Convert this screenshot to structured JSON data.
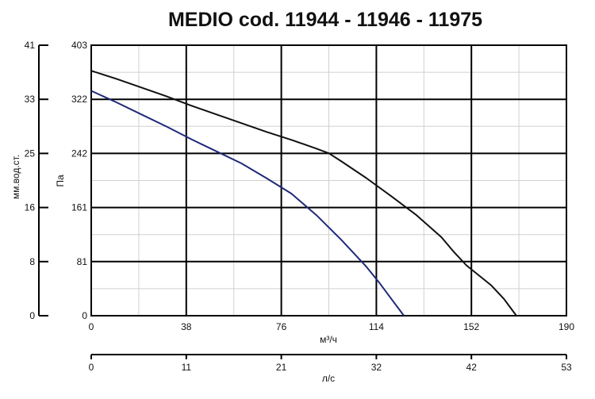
{
  "chart_data": {
    "type": "line",
    "title": "MEDIO cod. 11944 - 11946 - 11975",
    "xlabel": "м³/ч",
    "ylabel": "Па",
    "xlim": [
      0,
      190
    ],
    "ylim": [
      0,
      403
    ],
    "x_ticks": [
      "0",
      "38",
      "76",
      "114",
      "152",
      "190"
    ],
    "y_ticks": [
      "0",
      "81",
      "161",
      "242",
      "322",
      "403"
    ],
    "secondary_x": {
      "label": "л/с",
      "ticks": [
        "0",
        "11",
        "21",
        "32",
        "42",
        "53"
      ]
    },
    "secondary_y": {
      "label": "мм.вод.ст.",
      "ticks": [
        "0",
        "8",
        "16",
        "25",
        "33",
        "41"
      ]
    },
    "grid": true,
    "series": [
      {
        "color": "#111111",
        "x": [
          0,
          10,
          20,
          30,
          40,
          50,
          60,
          70,
          80,
          90,
          95,
          100,
          110,
          120,
          130,
          140,
          145,
          150,
          160,
          165,
          168,
          170
        ],
        "y": [
          365,
          353,
          340,
          327,
          313,
          300,
          287,
          274,
          262,
          249,
          242,
          230,
          205,
          178,
          150,
          117,
          95,
          75,
          45,
          25,
          10,
          0
        ]
      },
      {
        "color": "#1e2a78",
        "x": [
          0,
          10,
          20,
          30,
          40,
          50,
          60,
          70,
          80,
          90,
          100,
          110,
          115,
          120,
          123,
          125
        ],
        "y": [
          335,
          318,
          300,
          282,
          263,
          245,
          227,
          205,
          182,
          150,
          113,
          73,
          50,
          25,
          10,
          0
        ]
      }
    ]
  }
}
